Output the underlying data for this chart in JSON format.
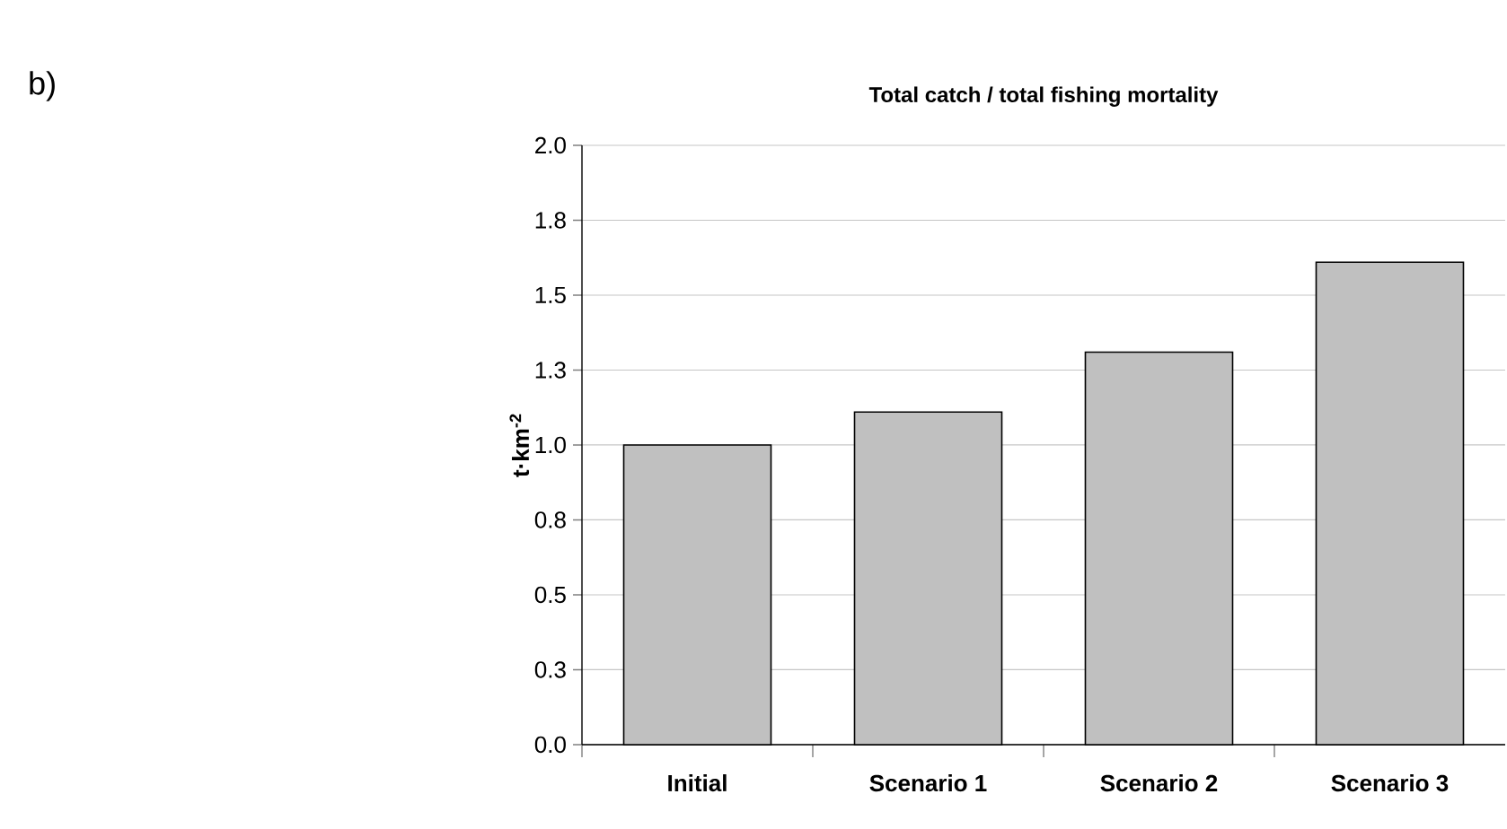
{
  "chart_data": {
    "type": "bar",
    "title": "Total catch / total fishing mortality",
    "ylabel": "t·km$^{-2}$",
    "categories": [
      "Initial",
      "Scenario 1",
      "Scenario 2",
      "Scenario 3"
    ],
    "values": [
      1.0,
      1.11,
      1.31,
      1.61
    ],
    "color": "#c0c0c0",
    "ylim": [
      0,
      2.0
    ],
    "yticks": [
      {
        "value": 0,
        "label": "0.0"
      },
      {
        "value": 0.25,
        "label": "0.3"
      },
      {
        "value": 0.5,
        "label": "0.5"
      },
      {
        "value": 0.75,
        "label": "0.8"
      },
      {
        "value": 1.0,
        "label": "1.0"
      },
      {
        "value": 1.25,
        "label": "1.3"
      },
      {
        "value": 1.5,
        "label": "1.5"
      },
      {
        "value": 1.75,
        "label": "1.8"
      },
      {
        "value": 2.0,
        "label": "2.0"
      }
    ],
    "grid": "y",
    "annotations": [
      "b)"
    ]
  }
}
